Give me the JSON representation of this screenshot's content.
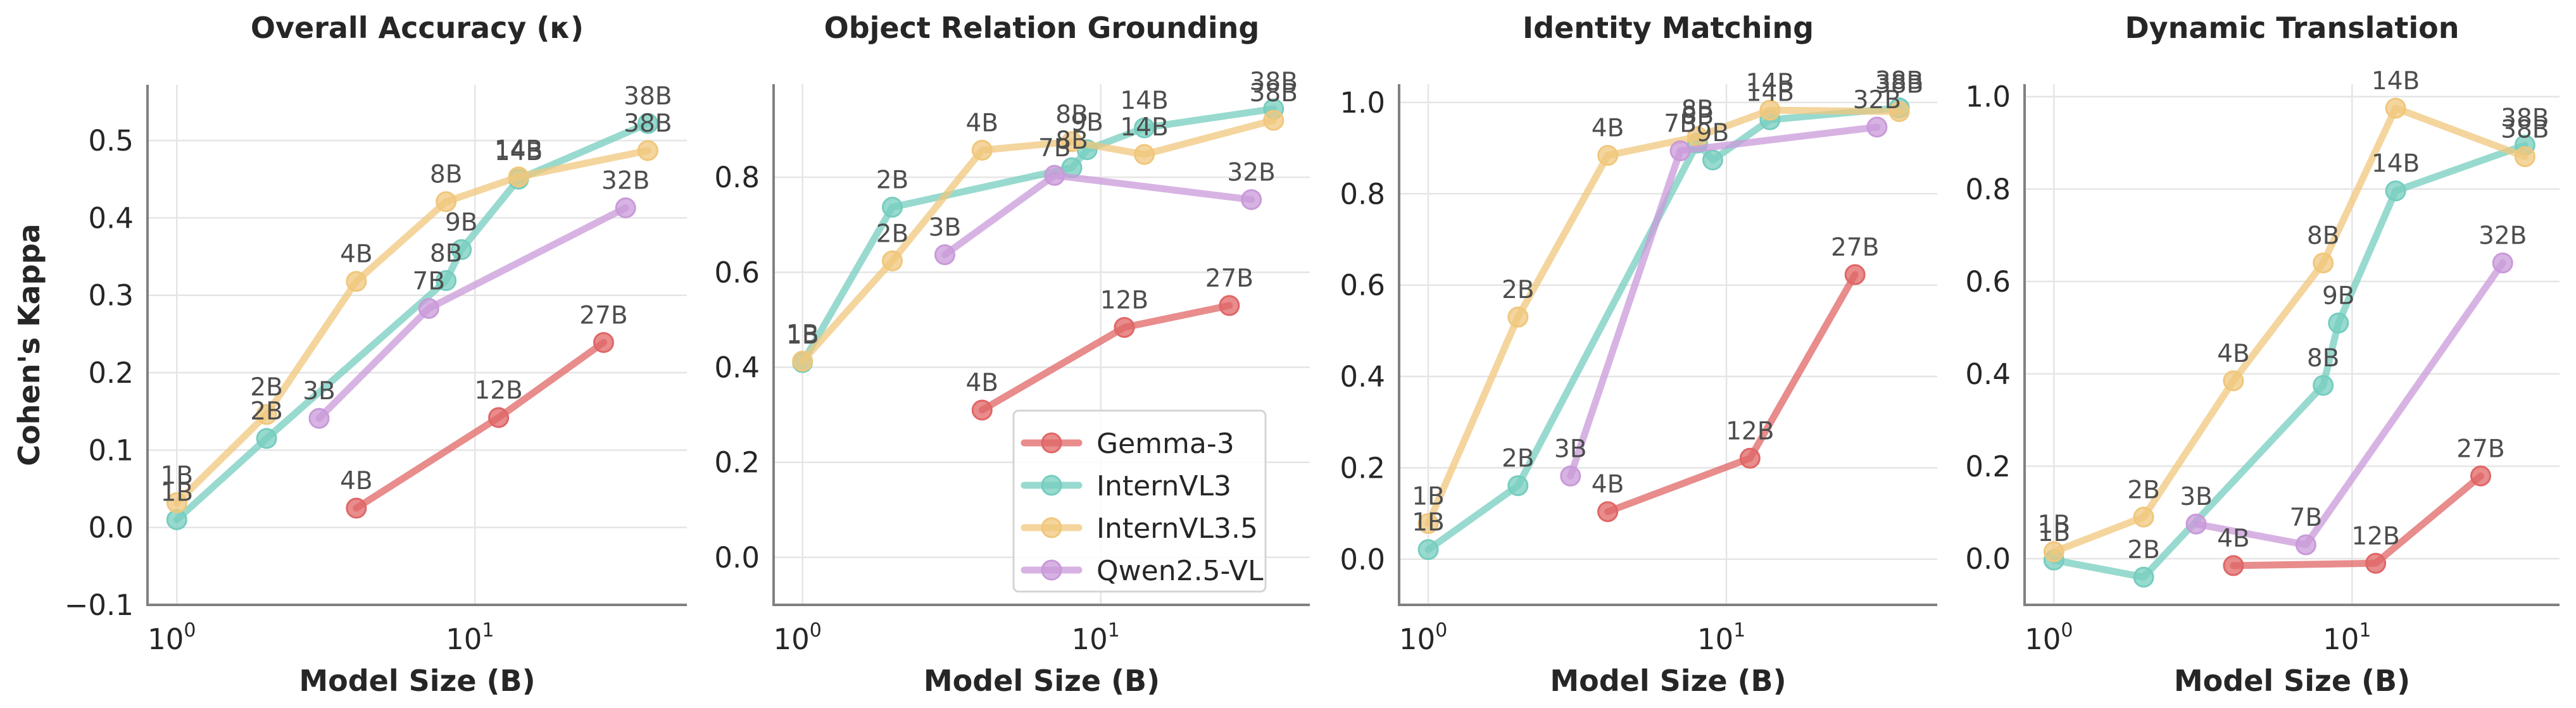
{
  "chart_data": [
    {
      "type": "line",
      "title": "Overall Accuracy (κ)",
      "xlabel": "Model Size (B)",
      "ylabel": "Cohen's Kappa",
      "xscale": "log",
      "xlim": [
        0.8,
        46
      ],
      "ylim": [
        -0.1,
        0.572
      ],
      "xticks": [
        {
          "base": "10",
          "exp": "0",
          "value": 1
        },
        {
          "base": "10",
          "exp": "1",
          "value": 10
        }
      ],
      "yticks": [
        -0.1,
        0.0,
        0.1,
        0.2,
        0.3,
        0.4,
        0.5
      ],
      "ytick_labels": [
        "−0.1",
        "0.0",
        "0.1",
        "0.2",
        "0.3",
        "0.4",
        "0.5"
      ],
      "grid": true,
      "series": [
        {
          "name": "Gemma-3",
          "points": [
            {
              "size": 4,
              "label": "4B",
              "value": 0.025
            },
            {
              "size": 12,
              "label": "12B",
              "value": 0.142
            },
            {
              "size": 27,
              "label": "27B",
              "value": 0.239
            }
          ]
        },
        {
          "name": "InternVL3",
          "points": [
            {
              "size": 1,
              "label": "1B",
              "value": 0.01
            },
            {
              "size": 2,
              "label": "2B",
              "value": 0.115
            },
            {
              "size": 8,
              "label": "8B",
              "value": 0.319
            },
            {
              "size": 9,
              "label": "9B",
              "value": 0.359
            },
            {
              "size": 14,
              "label": "14B",
              "value": 0.45
            },
            {
              "size": 38,
              "label": "38B",
              "value": 0.522
            }
          ]
        },
        {
          "name": "InternVL3.5",
          "points": [
            {
              "size": 1,
              "label": "1B",
              "value": 0.032
            },
            {
              "size": 2,
              "label": "2B",
              "value": 0.146
            },
            {
              "size": 4,
              "label": "4B",
              "value": 0.318
            },
            {
              "size": 8,
              "label": "8B",
              "value": 0.421
            },
            {
              "size": 14,
              "label": "14B",
              "value": 0.453
            },
            {
              "size": 38,
              "label": "38B",
              "value": 0.487
            }
          ]
        },
        {
          "name": "Qwen2.5-VL",
          "points": [
            {
              "size": 3,
              "label": "3B",
              "value": 0.141
            },
            {
              "size": 7,
              "label": "7B",
              "value": 0.283
            },
            {
              "size": 32,
              "label": "32B",
              "value": 0.413
            }
          ]
        }
      ]
    },
    {
      "type": "line",
      "title": "Object Relation Grounding",
      "xlabel": "Model Size (B)",
      "ylabel": "",
      "xscale": "log",
      "xlim": [
        0.8,
        46
      ],
      "ylim": [
        -0.1,
        0.996
      ],
      "xticks": [
        {
          "base": "10",
          "exp": "0",
          "value": 1
        },
        {
          "base": "10",
          "exp": "1",
          "value": 10
        }
      ],
      "yticks": [
        0.0,
        0.2,
        0.4,
        0.6,
        0.8
      ],
      "ytick_labels": [
        "0.0",
        "0.2",
        "0.4",
        "0.6",
        "0.8"
      ],
      "grid": true,
      "legend": {
        "placement": "lower-right",
        "entries": [
          "Gemma-3",
          "InternVL3",
          "InternVL3.5",
          "Qwen2.5-VL"
        ]
      },
      "series": [
        {
          "name": "Gemma-3",
          "points": [
            {
              "size": 4,
              "label": "4B",
              "value": 0.31
            },
            {
              "size": 12,
              "label": "12B",
              "value": 0.484
            },
            {
              "size": 27,
              "label": "27B",
              "value": 0.53
            }
          ]
        },
        {
          "name": "InternVL3",
          "points": [
            {
              "size": 1,
              "label": "1B",
              "value": 0.41
            },
            {
              "size": 2,
              "label": "2B",
              "value": 0.737
            },
            {
              "size": 8,
              "label": "8B",
              "value": 0.82
            },
            {
              "size": 9,
              "label": "9B",
              "value": 0.858
            },
            {
              "size": 14,
              "label": "14B",
              "value": 0.904
            },
            {
              "size": 38,
              "label": "38B",
              "value": 0.944
            }
          ]
        },
        {
          "name": "InternVL3.5",
          "points": [
            {
              "size": 1,
              "label": "1B",
              "value": 0.413
            },
            {
              "size": 2,
              "label": "2B",
              "value": 0.624
            },
            {
              "size": 4,
              "label": "4B",
              "value": 0.857
            },
            {
              "size": 8,
              "label": "8B",
              "value": 0.875
            },
            {
              "size": 14,
              "label": "14B",
              "value": 0.848
            },
            {
              "size": 38,
              "label": "38B",
              "value": 0.92
            }
          ]
        },
        {
          "name": "Qwen2.5-VL",
          "points": [
            {
              "size": 3,
              "label": "3B",
              "value": 0.637
            },
            {
              "size": 7,
              "label": "7B",
              "value": 0.804
            },
            {
              "size": 32,
              "label": "32B",
              "value": 0.753
            }
          ]
        }
      ]
    },
    {
      "type": "line",
      "title": "Identity Matching",
      "xlabel": "Model Size (B)",
      "ylabel": "",
      "xscale": "log",
      "xlim": [
        0.8,
        46
      ],
      "ylim": [
        -0.1,
        1.04
      ],
      "xticks": [
        {
          "base": "10",
          "exp": "0",
          "value": 1
        },
        {
          "base": "10",
          "exp": "1",
          "value": 10
        }
      ],
      "yticks": [
        0.0,
        0.2,
        0.4,
        0.6,
        0.8,
        1.0
      ],
      "ytick_labels": [
        "0.0",
        "0.2",
        "0.4",
        "0.6",
        "0.8",
        "1.0"
      ],
      "grid": true,
      "series": [
        {
          "name": "Gemma-3",
          "points": [
            {
              "size": 4,
              "label": "4B",
              "value": 0.104
            },
            {
              "size": 12,
              "label": "12B",
              "value": 0.221
            },
            {
              "size": 27,
              "label": "27B",
              "value": 0.623
            }
          ]
        },
        {
          "name": "InternVL3",
          "points": [
            {
              "size": 1,
              "label": "1B",
              "value": 0.021
            },
            {
              "size": 2,
              "label": "2B",
              "value": 0.161
            },
            {
              "size": 8,
              "label": "8B",
              "value": 0.911
            },
            {
              "size": 9,
              "label": "9B",
              "value": 0.874
            },
            {
              "size": 14,
              "label": "14B",
              "value": 0.962
            },
            {
              "size": 38,
              "label": "38B",
              "value": 0.988
            }
          ]
        },
        {
          "name": "InternVL3.5",
          "points": [
            {
              "size": 1,
              "label": "1B",
              "value": 0.078
            },
            {
              "size": 2,
              "label": "2B",
              "value": 0.53
            },
            {
              "size": 4,
              "label": "4B",
              "value": 0.884
            },
            {
              "size": 8,
              "label": "8B",
              "value": 0.925
            },
            {
              "size": 14,
              "label": "14B",
              "value": 0.983
            },
            {
              "size": 38,
              "label": "38B",
              "value": 0.98
            }
          ]
        },
        {
          "name": "Qwen2.5-VL",
          "points": [
            {
              "size": 3,
              "label": "3B",
              "value": 0.182
            },
            {
              "size": 7,
              "label": "7B",
              "value": 0.894
            },
            {
              "size": 32,
              "label": "32B",
              "value": 0.946
            }
          ]
        }
      ]
    },
    {
      "type": "line",
      "title": "Dynamic Translation",
      "xlabel": "Model Size (B)",
      "ylabel": "",
      "xscale": "log",
      "xlim": [
        0.8,
        46
      ],
      "ylim": [
        -0.1,
        1.027
      ],
      "xticks": [
        {
          "base": "10",
          "exp": "0",
          "value": 1
        },
        {
          "base": "10",
          "exp": "1",
          "value": 10
        }
      ],
      "yticks": [
        0.0,
        0.2,
        0.4,
        0.6,
        0.8,
        1.0
      ],
      "ytick_labels": [
        "0.0",
        "0.2",
        "0.4",
        "0.6",
        "0.8",
        "1.0"
      ],
      "grid": true,
      "series": [
        {
          "name": "Gemma-3",
          "points": [
            {
              "size": 4,
              "label": "4B",
              "value": -0.015
            },
            {
              "size": 12,
              "label": "12B",
              "value": -0.01
            },
            {
              "size": 27,
              "label": "27B",
              "value": 0.179
            }
          ]
        },
        {
          "name": "InternVL3",
          "points": [
            {
              "size": 1,
              "label": "1B",
              "value": -0.003
            },
            {
              "size": 2,
              "label": "2B",
              "value": -0.04
            },
            {
              "size": 8,
              "label": "8B",
              "value": 0.375
            },
            {
              "size": 9,
              "label": "9B",
              "value": 0.51
            },
            {
              "size": 14,
              "label": "14B",
              "value": 0.796
            },
            {
              "size": 38,
              "label": "38B",
              "value": 0.895
            }
          ]
        },
        {
          "name": "InternVL3.5",
          "points": [
            {
              "size": 1,
              "label": "1B",
              "value": 0.015
            },
            {
              "size": 2,
              "label": "2B",
              "value": 0.09
            },
            {
              "size": 4,
              "label": "4B",
              "value": 0.385
            },
            {
              "size": 8,
              "label": "8B",
              "value": 0.64
            },
            {
              "size": 14,
              "label": "14B",
              "value": 0.975
            },
            {
              "size": 38,
              "label": "38B",
              "value": 0.87
            }
          ]
        },
        {
          "name": "Qwen2.5-VL",
          "points": [
            {
              "size": 3,
              "label": "3B",
              "value": 0.075
            },
            {
              "size": 7,
              "label": "7B",
              "value": 0.03
            },
            {
              "size": 32,
              "label": "32B",
              "value": 0.64
            }
          ]
        }
      ]
    }
  ],
  "colors": {
    "Gemma-3": "#e06666",
    "InternVL3": "#76cdbf",
    "InternVL3.5": "#f0c77c",
    "Qwen2.5-VL": "#c99ad9",
    "label_text": "#4d4d4d",
    "axis_text": "#262626"
  }
}
